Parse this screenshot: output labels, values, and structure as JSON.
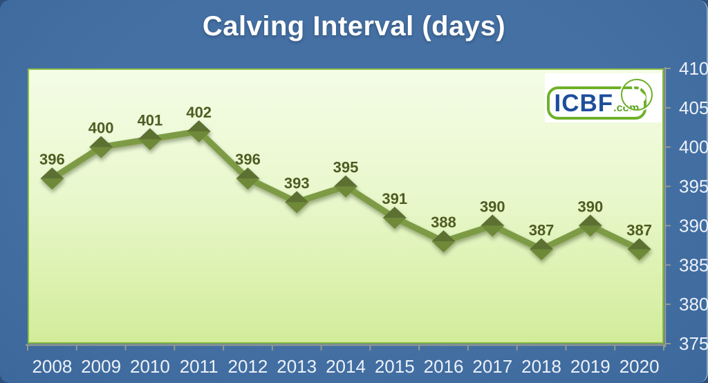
{
  "slide": {
    "title": "Calving Interval (days)"
  },
  "logo": {
    "name": "ICBF",
    "suffix": ".com",
    "blue": "#1d4e9c",
    "green": "#5ca321"
  },
  "chart_data": {
    "type": "line",
    "title": "Calving Interval (days)",
    "categories": [
      "2008",
      "2009",
      "2010",
      "2011",
      "2012",
      "2013",
      "2014",
      "2015",
      "2016",
      "2017",
      "2018",
      "2019",
      "2020"
    ],
    "series": [
      {
        "name": "Calving Interval (days)",
        "values": [
          396,
          400,
          401,
          402,
          396,
          393,
          395,
          391,
          388,
          390,
          387,
          390,
          387
        ]
      }
    ],
    "ylim": [
      375,
      410
    ],
    "yticks": [
      375,
      380,
      385,
      390,
      395,
      400,
      405,
      410
    ],
    "grid": false,
    "legend": "none",
    "data_labels": true,
    "colors": {
      "background": "#4470a4",
      "background_edge": "#3c689b",
      "title": "#ffffff",
      "line": "#7d9b44",
      "marker_top": "#5b7031",
      "marker_bottom": "#6e8939",
      "value_label": "#4e5c22",
      "axis": "#949a8e",
      "tick_label": "#edf2f9",
      "plot_top": "#f4fce6",
      "plot_mid": "#e9f8cd",
      "plot_bottom": "#d2ec9a",
      "plot_border": "#8cbd42"
    }
  }
}
